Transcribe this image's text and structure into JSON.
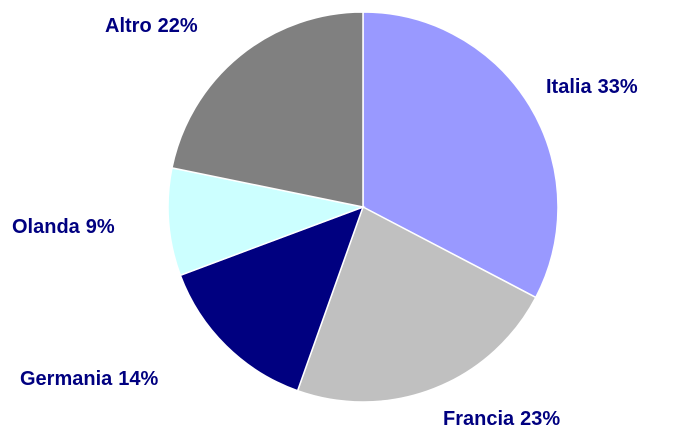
{
  "chart_data": {
    "type": "pie",
    "categories": [
      "Italia",
      "Francia",
      "Germania",
      "Olanda",
      "Altro"
    ],
    "values": [
      33,
      23,
      14,
      9,
      22
    ],
    "value_labels": [
      "33%",
      "23%",
      "14%",
      "9%",
      "22%"
    ],
    "colors": [
      "#9999ff",
      "#c0c0c0",
      "#000080",
      "#ccffff",
      "#808080"
    ]
  }
}
